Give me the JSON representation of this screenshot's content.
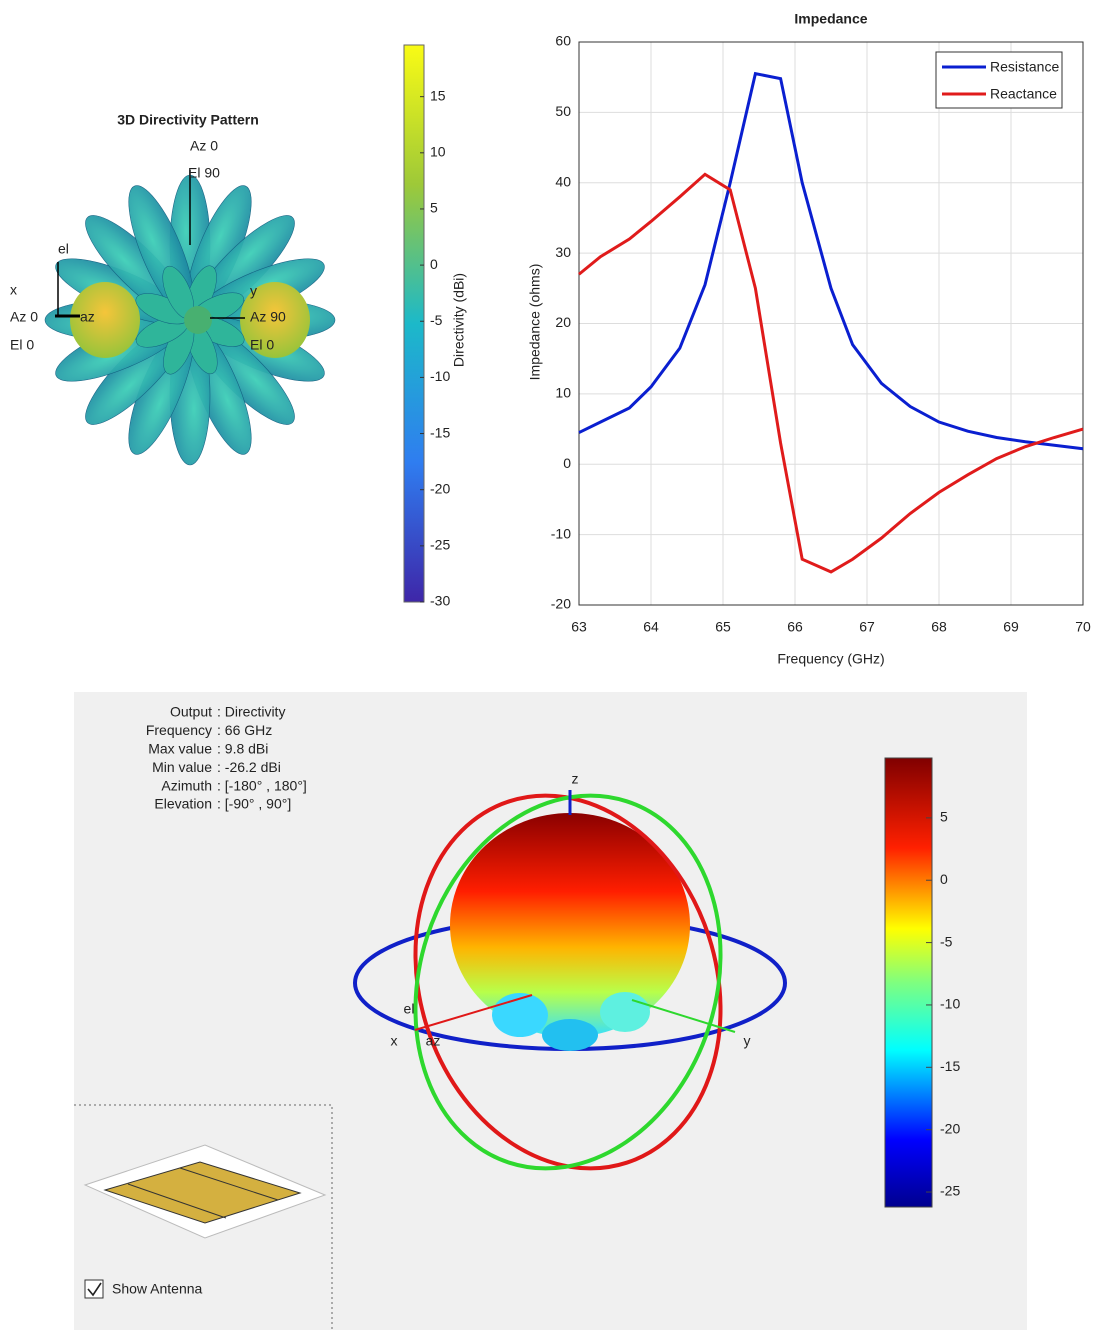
{
  "chart_data": [
    {
      "type": "pattern3d",
      "title": "3D Directivity Pattern",
      "annotations": [
        "Az 0",
        "El 90",
        "x",
        "Az 0",
        "El 0",
        "el",
        "az",
        "y",
        "Az 90",
        "El 0"
      ],
      "colorbar_label": "Directivity (dBi)",
      "clim": [
        -30,
        19.6
      ],
      "cticks": [
        -30,
        -25,
        -20,
        -15,
        -10,
        -5,
        0,
        5,
        10,
        15
      ],
      "colormap": "parula"
    },
    {
      "type": "line",
      "title": "Impedance",
      "xlabel": "Frequency (GHz)",
      "ylabel": "Impedance (ohms)",
      "x": [
        63,
        63.3,
        63.7,
        64,
        64.4,
        64.75,
        65.1,
        65.45,
        65.8,
        66.1,
        66.5,
        66.8,
        67.2,
        67.6,
        68,
        68.4,
        68.8,
        69.2,
        69.6,
        70
      ],
      "series": [
        {
          "name": "Resistance",
          "color": "#0a1fd0",
          "values": [
            4.5,
            6,
            8,
            11,
            16.5,
            25.5,
            40,
            55.5,
            54.8,
            40,
            25,
            17,
            11.5,
            8.2,
            6,
            4.7,
            3.8,
            3.2,
            2.7,
            2.2
          ]
        },
        {
          "name": "Reactance",
          "color": "#e01b1b",
          "values": [
            27,
            29.5,
            32,
            34.5,
            38,
            41.2,
            39,
            25,
            3,
            -13.5,
            -15.3,
            -13.5,
            -10.5,
            -7,
            -4,
            -1.5,
            0.8,
            2.5,
            3.8,
            5
          ]
        }
      ],
      "xlim": [
        63,
        70
      ],
      "ylim": [
        -20,
        60
      ],
      "xticks": [
        63,
        64,
        65,
        66,
        67,
        68,
        69,
        70
      ],
      "yticks": [
        -20,
        -10,
        0,
        10,
        20,
        30,
        40,
        50,
        60
      ],
      "grid": true,
      "legend": "upper-right"
    },
    {
      "type": "pattern3d-viewer",
      "info": [
        {
          "label": "Output",
          "value": ": Directivity"
        },
        {
          "label": "Frequency",
          "value": ": 66 GHz"
        },
        {
          "label": "Max value",
          "value": ": 9.8 dBi"
        },
        {
          "label": "Min value",
          "value": ": -26.2 dBi"
        },
        {
          "label": "Azimuth",
          "value": ": [-180° , 180°]"
        },
        {
          "label": "Elevation",
          "value": ": [-90° , 90°]"
        }
      ],
      "axis_labels": [
        "z",
        "x",
        "y",
        "el",
        "az"
      ],
      "clim": [
        -26.2,
        9.8
      ],
      "cticks": [
        5,
        0,
        -5,
        -10,
        -15,
        -20,
        -25
      ],
      "colormap": "jet",
      "checkbox": "Show Antenna",
      "checked": true
    }
  ]
}
